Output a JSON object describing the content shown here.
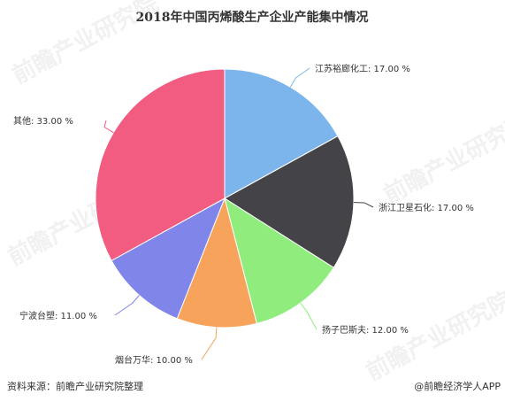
{
  "chart_data": {
    "type": "pie",
    "title": "2018年中国丙烯酸生产企业产能集中情况",
    "unit": "%",
    "slices": [
      {
        "name": "江苏裕廊化工",
        "value": 17.0,
        "label": "江苏裕廊化工: 17.00 %",
        "color": "#7cb5ec"
      },
      {
        "name": "浙江卫星石化",
        "value": 17.0,
        "label": "浙江卫星石化: 17.00 %",
        "color": "#434348"
      },
      {
        "name": "扬子巴斯夫",
        "value": 12.0,
        "label": "扬子巴斯夫: 12.00 %",
        "color": "#90ed7d"
      },
      {
        "name": "烟台万华",
        "value": 10.0,
        "label": "烟台万华: 10.00 %",
        "color": "#f7a35c"
      },
      {
        "name": "宁波台塑",
        "value": 11.0,
        "label": "宁波台塑: 11.00 %",
        "color": "#8085e9"
      },
      {
        "name": "其他",
        "value": 33.0,
        "label": "其他: 33.00 %",
        "color": "#f15c80"
      }
    ],
    "start_angle_deg": 0,
    "direction": "clockwise",
    "legend": "none"
  },
  "footer": {
    "source": "资料来源：前瞻产业研究院整理",
    "brand": "@前瞻经济学人APP"
  },
  "watermark": {
    "text": "前瞻产业研究院"
  }
}
